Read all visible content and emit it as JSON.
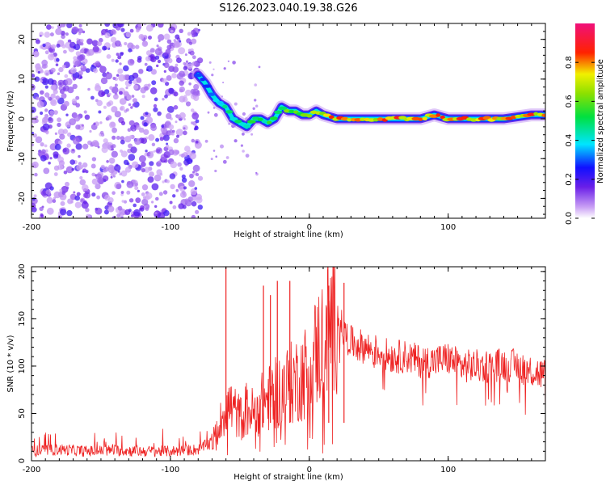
{
  "title": "S126.2023.040.19.38.G26",
  "colors": {
    "snr_line": "#ee2222",
    "scatter_point": "#7a1cf0",
    "axis": "#000000"
  },
  "chart_data": [
    {
      "type": "heatmap",
      "title": "S126.2023.040.19.38.G26",
      "xlabel": "Height of straight line (km)",
      "ylabel": "Frequency (Hz)",
      "xlim": [
        -200,
        170
      ],
      "ylim": [
        -25,
        24
      ],
      "x_ticks": [
        -200,
        -100,
        0,
        100
      ],
      "x_tick_labels": [
        "-200",
        "-100",
        "0",
        "100"
      ],
      "y_ticks": [
        -20,
        -10,
        0,
        10,
        20
      ],
      "y_tick_labels": [
        "-20",
        "-10",
        "0",
        "10",
        "20"
      ],
      "colorbar": {
        "label": "Normalized spectral amplitude",
        "range": [
          0,
          1
        ],
        "ticks": [
          0,
          0.2,
          0.4,
          0.6,
          0.8
        ],
        "tick_labels": [
          "0.0",
          "0.2",
          "0.4",
          "0.6",
          "0.8"
        ],
        "colormap": "rainbow (white-purple-blue-cyan-green-yellow-red-magenta)"
      },
      "noise_region_x": [
        -200,
        -78
      ],
      "ridge": {
        "x": [
          -80,
          -75,
          -70,
          -65,
          -60,
          -55,
          -50,
          -45,
          -40,
          -35,
          -30,
          -25,
          -20,
          -15,
          -10,
          -5,
          0,
          5,
          10,
          20,
          30,
          40,
          60,
          80,
          90,
          100,
          120,
          140,
          160,
          170
        ],
        "y": [
          11,
          9,
          6,
          4,
          3,
          0,
          -1,
          -2,
          0,
          0,
          -1,
          0,
          3,
          2,
          2,
          1,
          1,
          2,
          1,
          0,
          0,
          0,
          0,
          0,
          1,
          0,
          0,
          0,
          1,
          1
        ],
        "amplitude": [
          0.3,
          0.35,
          0.4,
          0.45,
          0.5,
          0.5,
          0.5,
          0.55,
          0.55,
          0.6,
          0.55,
          0.6,
          0.6,
          0.65,
          0.7,
          0.7,
          0.75,
          0.75,
          0.8,
          0.85,
          0.85,
          0.85,
          0.85,
          0.85,
          0.85,
          0.85,
          0.85,
          0.85,
          0.85,
          0.85
        ]
      }
    },
    {
      "type": "line",
      "xlabel": "Height of straight line (km)",
      "ylabel": "SNR (10 * v/v)",
      "xlim": [
        -200,
        170
      ],
      "ylim": [
        0,
        205
      ],
      "x_ticks": [
        -200,
        -100,
        0,
        100
      ],
      "x_tick_labels": [
        "-200",
        "-100",
        "0",
        "100"
      ],
      "y_ticks": [
        0,
        50,
        100,
        150,
        200
      ],
      "y_tick_labels": [
        "0",
        "50",
        "100",
        "150",
        "200"
      ],
      "series": [
        {
          "x": [
            -200,
            -180,
            -160,
            -140,
            -120,
            -100,
            -80,
            -70,
            -65,
            -60,
            -55,
            -50,
            -45,
            -40,
            -35,
            -30,
            -25,
            -20,
            -15,
            -10,
            -5,
            0,
            5,
            10,
            15,
            20,
            25,
            30,
            40,
            50,
            60,
            70,
            80,
            90,
            100,
            110,
            120,
            130,
            140,
            150,
            160,
            170
          ],
          "y": [
            10,
            12,
            10,
            11,
            10,
            10,
            12,
            20,
            35,
            60,
            55,
            45,
            55,
            50,
            60,
            65,
            70,
            75,
            80,
            85,
            90,
            100,
            115,
            130,
            145,
            155,
            135,
            125,
            120,
            115,
            110,
            110,
            105,
            105,
            108,
            100,
            100,
            100,
            102,
            100,
            95,
            90
          ],
          "spikes": [
            {
              "x": -60,
              "y": 205
            },
            {
              "x": -33,
              "y": 185
            },
            {
              "x": -28,
              "y": 175
            },
            {
              "x": -23,
              "y": 190
            },
            {
              "x": -14,
              "y": 190
            },
            {
              "x": 14,
              "y": 185
            },
            {
              "x": 25,
              "y": 188
            }
          ]
        }
      ]
    }
  ]
}
